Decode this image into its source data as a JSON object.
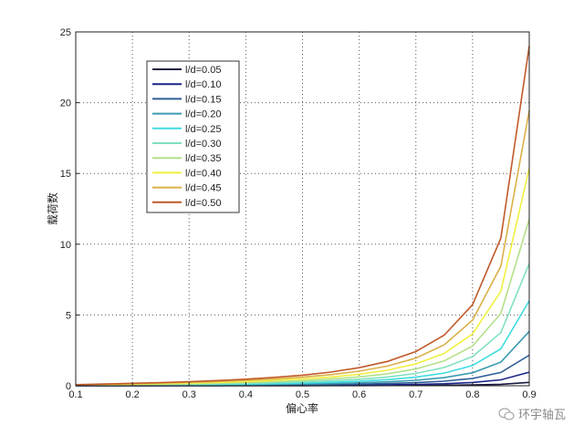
{
  "chart_data": {
    "type": "line",
    "xlabel": "偏心率",
    "ylabel": "载荷数",
    "xlim": [
      0.1,
      0.9
    ],
    "ylim": [
      0,
      25
    ],
    "xticks": [
      "0.1",
      "0.2",
      "0.3",
      "0.4",
      "0.5",
      "0.6",
      "0.7",
      "0.8",
      "0.9"
    ],
    "yticks": [
      "0",
      "5",
      "10",
      "15",
      "20",
      "25"
    ],
    "grid": true,
    "legend_position": "top-left",
    "x": [
      0.1,
      0.15,
      0.2,
      0.25,
      0.3,
      0.35,
      0.4,
      0.45,
      0.5,
      0.55,
      0.6,
      0.65,
      0.7,
      0.75,
      0.8,
      0.85,
      0.9
    ],
    "series": [
      {
        "name": "l/d=0.05",
        "color": "#1a1a40",
        "values": [
          0.0008,
          0.0012,
          0.0017,
          0.0023,
          0.0029,
          0.0037,
          0.0047,
          0.0059,
          0.0075,
          0.0097,
          0.0127,
          0.0172,
          0.0241,
          0.0358,
          0.0573,
          0.1043,
          0.2401
        ]
      },
      {
        "name": "l/d=0.10",
        "color": "#1c2488",
        "values": [
          0.0032,
          0.005,
          0.0069,
          0.0091,
          0.0117,
          0.0148,
          0.0187,
          0.0236,
          0.03,
          0.0387,
          0.0509,
          0.0688,
          0.0966,
          0.143,
          0.2293,
          0.4174,
          0.9603
        ]
      },
      {
        "name": "l/d=0.15",
        "color": "#2d5c96",
        "values": [
          0.0072,
          0.0112,
          0.0155,
          0.0205,
          0.0263,
          0.0333,
          0.042,
          0.0531,
          0.0675,
          0.0871,
          0.1145,
          0.1548,
          0.2173,
          0.3218,
          0.5158,
          0.9391,
          2.1606
        ]
      },
      {
        "name": "l/d=0.20",
        "color": "#3a9ab0",
        "values": [
          0.0129,
          0.0199,
          0.0276,
          0.0364,
          0.0468,
          0.0593,
          0.0747,
          0.0943,
          0.1201,
          0.1548,
          0.2036,
          0.2752,
          0.3863,
          0.572,
          0.917,
          1.6696,
          3.841
        ]
      },
      {
        "name": "l/d=0.25",
        "color": "#40dce0",
        "values": [
          0.0201,
          0.031,
          0.0431,
          0.0569,
          0.0731,
          0.0926,
          0.1167,
          0.1474,
          0.1876,
          0.2419,
          0.3182,
          0.43,
          0.6035,
          0.8938,
          1.4328,
          2.6087,
          6.0016
        ]
      },
      {
        "name": "l/d=0.30",
        "color": "#80e0c0",
        "values": [
          0.0289,
          0.0447,
          0.0621,
          0.082,
          0.1053,
          0.1333,
          0.1681,
          0.2123,
          0.2701,
          0.3484,
          0.4582,
          0.6192,
          0.8691,
          1.287,
          2.0633,
          3.7565,
          8.6423
        ]
      },
      {
        "name": "l/d=0.35",
        "color": "#b4e088",
        "values": [
          0.0394,
          0.0608,
          0.0845,
          0.1116,
          0.1433,
          0.1815,
          0.2287,
          0.2889,
          0.3677,
          0.4742,
          0.6236,
          0.8427,
          1.1829,
          1.7518,
          2.8083,
          5.113,
          11.7632
        ]
      },
      {
        "name": "l/d=0.40",
        "color": "#f0f040",
        "values": [
          0.0514,
          0.0795,
          0.1104,
          0.1457,
          0.1871,
          0.237,
          0.2988,
          0.3774,
          0.4802,
          0.6194,
          0.8145,
          1.1007,
          1.545,
          2.288,
          3.668,
          6.6782,
          15.3642
        ]
      },
      {
        "name": "l/d=0.45",
        "color": "#dcb048",
        "values": [
          0.0651,
          0.1006,
          0.1398,
          0.1844,
          0.2368,
          0.3,
          0.3781,
          0.4776,
          0.6078,
          0.7839,
          1.0308,
          1.3931,
          1.9554,
          2.8958,
          4.6423,
          8.4521,
          19.4453
        ]
      },
      {
        "name": "l/d=0.50",
        "color": "#c05a2a",
        "values": [
          0.0804,
          0.1242,
          0.1726,
          0.2277,
          0.2924,
          0.3704,
          0.4668,
          0.5896,
          0.7504,
          0.9678,
          1.2727,
          1.7199,
          2.4141,
          3.575,
          5.7313,
          10.4348,
          24.0065
        ]
      }
    ]
  },
  "watermark": {
    "text": "环宇轴瓦",
    "icon": "wechat-logo-icon"
  }
}
